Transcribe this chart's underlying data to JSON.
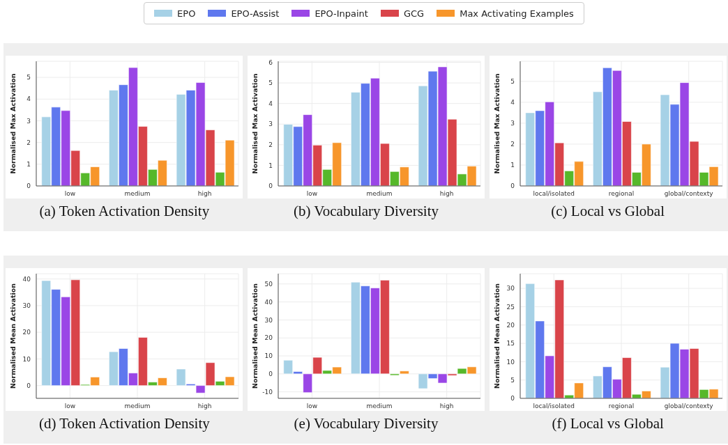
{
  "chart_data": [
    {
      "type": "bar",
      "title": "(a) Token Activation Density",
      "ylabel": "Normalised Max Activation",
      "categories": [
        "low",
        "medium",
        "high"
      ],
      "ylim": [
        0,
        5.74
      ],
      "yticks": [
        0,
        1,
        2,
        3,
        4,
        5
      ],
      "grid": true,
      "legend": "top",
      "series": [
        {
          "name": "EPO",
          "color": "#a6d1e6",
          "values": [
            3.18,
            4.41,
            4.22
          ]
        },
        {
          "name": "EPO-Assist",
          "color": "#5f78ee",
          "values": [
            3.63,
            4.66,
            4.41
          ]
        },
        {
          "name": "EPO-Inpaint",
          "color": "#9a46e6",
          "values": [
            3.47,
            5.45,
            4.76
          ]
        },
        {
          "name": "GCG",
          "color": "#d9444a",
          "values": [
            1.63,
            2.74,
            2.58
          ]
        },
        {
          "color": "#56b82a",
          "values": [
            0.6,
            0.76,
            0.63
          ]
        },
        {
          "name": "Max Activating Examples",
          "color": "#f7962b",
          "values": [
            0.88,
            1.18,
            2.11
          ]
        }
      ]
    },
    {
      "type": "bar",
      "title": "(b) Vocabulary Diversity",
      "ylabel": "Normalised Max Activation",
      "categories": [
        "low",
        "medium",
        "high"
      ],
      "ylim": [
        0,
        6.05
      ],
      "yticks": [
        0,
        1,
        2,
        3,
        4,
        5,
        6
      ],
      "grid": true,
      "series": [
        {
          "color": "#a6d1e6",
          "values": [
            2.99,
            4.55,
            4.86
          ]
        },
        {
          "color": "#5f78ee",
          "values": [
            2.88,
            4.98,
            5.57
          ]
        },
        {
          "color": "#9a46e6",
          "values": [
            3.46,
            5.23,
            5.78
          ]
        },
        {
          "color": "#d9444a",
          "values": [
            1.98,
            2.06,
            3.24
          ]
        },
        {
          "color": "#56b82a",
          "values": [
            0.8,
            0.7,
            0.58
          ]
        },
        {
          "color": "#f7962b",
          "values": [
            2.1,
            0.92,
            0.96
          ]
        }
      ]
    },
    {
      "type": "bar",
      "title": "(c) Local vs Global",
      "ylabel": "Normalised Max Activation",
      "categories": [
        "local/isolated",
        "regional",
        "global/contexty"
      ],
      "ylim": [
        0,
        5.96
      ],
      "yticks": [
        0,
        1,
        2,
        3,
        4,
        5
      ],
      "grid": true,
      "series": [
        {
          "color": "#a6d1e6",
          "values": [
            3.5,
            4.5,
            4.36
          ]
        },
        {
          "color": "#5f78ee",
          "values": [
            3.6,
            5.65,
            3.9
          ]
        },
        {
          "color": "#9a46e6",
          "values": [
            4.02,
            5.52,
            4.94
          ]
        },
        {
          "color": "#d9444a",
          "values": [
            2.06,
            3.08,
            2.13
          ]
        },
        {
          "color": "#56b82a",
          "values": [
            0.72,
            0.65,
            0.65
          ]
        },
        {
          "color": "#f7962b",
          "values": [
            1.17,
            2.0,
            0.92
          ]
        }
      ]
    },
    {
      "type": "bar",
      "title": "(d) Token Activation Density",
      "ylabel": "Normalised Mean Activation",
      "categories": [
        "low",
        "medium",
        "high"
      ],
      "ylim": [
        -4.8,
        42
      ],
      "yticks": [
        0,
        10,
        20,
        30,
        40
      ],
      "grid": true,
      "series": [
        {
          "color": "#a6d1e6",
          "values": [
            39.4,
            12.7,
            6.2
          ]
        },
        {
          "color": "#5f78ee",
          "values": [
            36.1,
            13.9,
            0.6
          ]
        },
        {
          "color": "#9a46e6",
          "values": [
            33.3,
            4.7,
            -2.8
          ]
        },
        {
          "color": "#d9444a",
          "values": [
            39.7,
            18.1,
            8.6
          ]
        },
        {
          "color": "#56b82a",
          "values": [
            0.4,
            1.3,
            1.6
          ]
        },
        {
          "color": "#f7962b",
          "values": [
            3.2,
            2.9,
            3.3
          ]
        }
      ]
    },
    {
      "type": "bar",
      "title": "(e) Vocabulary Diversity",
      "ylabel": "Normalised Mean Activation",
      "categories": [
        "low",
        "medium",
        "high"
      ],
      "ylim": [
        -13.6,
        55.7
      ],
      "yticks": [
        -10,
        0,
        10,
        20,
        30,
        40,
        50
      ],
      "grid": true,
      "series": [
        {
          "color": "#a6d1e6",
          "values": [
            7.6,
            51,
            -8.2
          ]
        },
        {
          "color": "#5f78ee",
          "values": [
            1.3,
            48.9,
            -2.6
          ]
        },
        {
          "color": "#9a46e6",
          "values": [
            -10.4,
            47.8,
            -5.1
          ]
        },
        {
          "color": "#d9444a",
          "values": [
            9.2,
            52.1,
            -0.9
          ]
        },
        {
          "color": "#56b82a",
          "values": [
            1.9,
            -0.8,
            3.0
          ]
        },
        {
          "color": "#f7962b",
          "values": [
            3.8,
            1.6,
            3.9
          ]
        }
      ]
    },
    {
      "type": "bar",
      "title": "(f) Local vs Global",
      "ylabel": "Normalised Mean Activation",
      "categories": [
        "local/isolated",
        "regional",
        "global/contexty"
      ],
      "ylim": [
        0,
        34
      ],
      "yticks": [
        0,
        5,
        10,
        15,
        20,
        25,
        30
      ],
      "grid": true,
      "series": [
        {
          "color": "#a6d1e6",
          "values": [
            31.3,
            6.1,
            8.5
          ]
        },
        {
          "color": "#5f78ee",
          "values": [
            21.1,
            8.6,
            15
          ]
        },
        {
          "color": "#9a46e6",
          "values": [
            11.6,
            5.2,
            13.4
          ]
        },
        {
          "color": "#d9444a",
          "values": [
            32.3,
            11.1,
            13.6
          ]
        },
        {
          "color": "#56b82a",
          "values": [
            0.9,
            1.1,
            2.4
          ]
        },
        {
          "color": "#f7962b",
          "values": [
            4.2,
            2.0,
            2.5
          ]
        }
      ]
    }
  ]
}
